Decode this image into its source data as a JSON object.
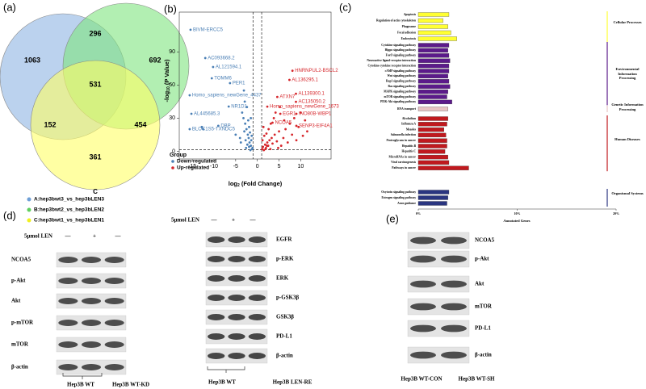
{
  "venn": {
    "label": "(a)",
    "set_label": "C",
    "counts": [
      1063,
      296,
      692,
      531,
      152,
      454,
      361
    ],
    "legend": [
      "A:hep3bwt3_vs_hep3bLEN3",
      "B:hep3bwt2_vs_hep3bLEN2",
      "C:hep3bwt1_vs_hep3bLEN1"
    ],
    "colors": [
      "#8db4e2",
      "#7fe47f",
      "#ffff66"
    ],
    "legend_colors": [
      "#6e9fd6",
      "#5fcf5f",
      "#f0f020"
    ]
  },
  "volcano": {
    "label": "(b)",
    "type": "scatter",
    "xlabel": {
      "pre": "log",
      "sub": "2",
      "post": " (Fold Change)"
    },
    "ylabel": {
      "pre": "-log",
      "sub": "10",
      "post": " (P Value)"
    },
    "xlim": [
      -18,
      17
    ],
    "ylim": [
      -7,
      126
    ],
    "xticks": [
      -15,
      -10,
      -5,
      0,
      5,
      10
    ],
    "yticks": [
      0,
      30,
      60,
      90
    ],
    "thresholds": {
      "x": [
        -1,
        1
      ],
      "y": 1.3
    },
    "legend_title": "Group",
    "series": [
      {
        "name": "Down-regulated",
        "color": "#4a7fb5",
        "x": [
          -1.2,
          -1.5,
          -1.8,
          -2.0,
          -2.2,
          -1.4,
          -2.5,
          -2.8,
          -3.0,
          -1.1,
          -1.6,
          -2.3,
          -3.2,
          -2.7,
          -1.9,
          -3.5,
          -2.1,
          -1.3,
          -4.0,
          -1.7,
          -2.4,
          -2.9,
          -3.1,
          -1.5,
          -12.8,
          -12.5,
          -5,
          -2.6,
          -1.9,
          -3.8
        ],
        "y": [
          2,
          5,
          8,
          12,
          15,
          10,
          20,
          25,
          18,
          3,
          1,
          6,
          30,
          10,
          22,
          35,
          28,
          14,
          12,
          17,
          40,
          45,
          55,
          30,
          22,
          20,
          15,
          3,
          4,
          8
        ]
      },
      {
        "name": "Up-regulated",
        "color": "#d6262b",
        "x": [
          1.1,
          1.3,
          1.5,
          1.8,
          2.0,
          2.3,
          2.5,
          2.8,
          3.0,
          3.3,
          3.5,
          4.0,
          4.5,
          5.0,
          5.5,
          6.0,
          6.5,
          7.0,
          7.5,
          8.0,
          8.5,
          9.0,
          9.5,
          10.0,
          10.5,
          11,
          11.5,
          1.2,
          1.6,
          2.1,
          2.6,
          3.1,
          3.8,
          4.2,
          5.2,
          6.2,
          1.4,
          2.2,
          1.9,
          4.8
        ],
        "y": [
          2,
          4,
          1,
          6,
          3,
          8,
          5,
          10,
          2,
          12,
          7,
          15,
          9,
          18,
          5,
          12,
          20,
          8,
          25,
          15,
          30,
          10,
          22,
          35,
          14,
          28,
          18,
          10,
          14,
          16,
          20,
          25,
          30,
          35,
          40,
          28,
          22,
          5,
          2,
          3
        ]
      }
    ],
    "annotations": [
      {
        "text": "BIVM-ERCC5",
        "x": -15.4,
        "y": 110,
        "series": 0
      },
      {
        "text": "AC093668.2",
        "x": -12.0,
        "y": 84.4,
        "series": 0
      },
      {
        "text": "AL121594.1",
        "x": -10.2,
        "y": 76.3,
        "series": 0
      },
      {
        "text": "TOMM6",
        "x": -10.5,
        "y": 66.1,
        "series": 0
      },
      {
        "text": "PER1",
        "x": -6.3,
        "y": 61.7,
        "series": 0
      },
      {
        "text": "Homo_sapiens_newGene_4437",
        "x": -15.6,
        "y": 50.7,
        "series": 0
      },
      {
        "text": "NR1D1",
        "x": -6.6,
        "y": 40.5,
        "series": 0
      },
      {
        "text": "AL445685.3",
        "x": -15.2,
        "y": 33.9,
        "series": 0
      },
      {
        "text": "DBP",
        "x": -9.0,
        "y": 23.0,
        "series": 0
      },
      {
        "text": "BLOC1S5-TXNDC5",
        "x": -15.6,
        "y": 20.0,
        "series": 0
      },
      {
        "text": "HNRNPUL2-BSCL2",
        "x": 8.1,
        "y": 72.9,
        "series": 1
      },
      {
        "text": "AL136295.1",
        "x": 7.4,
        "y": 64.6,
        "series": 1
      },
      {
        "text": "AL139300.1",
        "x": 8.9,
        "y": 52.1,
        "series": 1
      },
      {
        "text": "AC135050.2",
        "x": 8.9,
        "y": 44.8,
        "series": 1
      },
      {
        "text": "ATXN7",
        "x": 4.6,
        "y": 49.2,
        "series": 1
      },
      {
        "text": "Homo_sapiens_newGene_1673",
        "x": 2.3,
        "y": 40.4,
        "series": 1
      },
      {
        "text": "EGR1",
        "x": 5.3,
        "y": 33.9,
        "series": 1
      },
      {
        "text": "INO80B-WBP1",
        "x": 9.0,
        "y": 33.9,
        "series": 1
      },
      {
        "text": "NCOA5",
        "x": 3.5,
        "y": 25.9,
        "series": 1
      },
      {
        "text": "SENP3-EIF4A1",
        "x": 9.0,
        "y": 23.0,
        "series": 1
      }
    ]
  },
  "kegg": {
    "label": "(c)",
    "type": "bar",
    "xlabel": "Annotated Genes",
    "xlim": [
      0,
      20
    ],
    "xticks": [
      {
        "value": 0,
        "label": "0%"
      },
      {
        "value": 10,
        "label": "10%"
      },
      {
        "value": 20,
        "label": "20%"
      }
    ],
    "groups": [
      {
        "name": "Cellular Processes",
        "color": "#ffff33",
        "categories": [
          "Apoptosis",
          "Regulation of actin cytoskeleton",
          "Phagosome",
          "Focal adhesion",
          "Endocytosis"
        ],
        "values": [
          3.1,
          2.5,
          3.0,
          3.3,
          3.9
        ]
      },
      {
        "name": "Environmental Information Processing",
        "color": "#5b1a8a",
        "categories": [
          "Cytokine signaling pathway",
          "Hippo signaling pathway",
          "FoxO signaling pathway",
          "Neuroactive ligand-receptor interaction",
          "Cytokine-cytokine receptor interaction",
          "cAMP signaling pathway",
          "Wnt signaling pathway",
          "Rap1 signaling pathway",
          "Ras signaling pathway",
          "MAPK signaling pathway",
          "mTOR signaling pathway",
          "PI3K-Akt signaling pathway"
        ],
        "values": [
          3.1,
          3.0,
          3.1,
          3.2,
          3.1,
          3.1,
          3.0,
          3.1,
          3.2,
          3.0,
          2.9,
          3.4
        ]
      },
      {
        "name": "Genetic Information Processing",
        "color": "#e8c4c4",
        "categories": [
          "RNA transport"
        ],
        "values": [
          3.0
        ]
      },
      {
        "name": "Human Diseases",
        "color": "#c0191e",
        "categories": [
          "Alcoholism",
          "Influenza A",
          "Measles",
          "Salmonella infection",
          "Proteoglycans in cancer",
          "Hepatitis B",
          "Hepatitis C",
          "MicroRNAs in cancer",
          "Viral carcinogenesis",
          "Pathways in cancer"
        ],
        "values": [
          3.0,
          2.9,
          2.6,
          2.8,
          2.9,
          2.9,
          2.7,
          3.0,
          3.1,
          5.1
        ]
      },
      {
        "name": "Organismal Systems",
        "color": "#2a3580",
        "categories": [
          "Oxytocin signaling pathway",
          "Estrogen signaling pathway",
          "Axon guidance"
        ],
        "values": [
          3.1,
          3.0,
          2.9
        ]
      }
    ]
  },
  "blot_d1": {
    "label": "(d)",
    "treatment": "5μmol LEN",
    "marks": [
      "—",
      "+",
      "—"
    ],
    "proteins": [
      "NCOA5",
      "p-Akt",
      "Akt",
      "p-mTOR",
      "mTOR",
      "β-actin"
    ],
    "groups": [
      "Hep3B WT",
      "Hep3B WT-KD"
    ]
  },
  "blot_d2": {
    "treatment": "5μmol LEN",
    "marks": [
      "—",
      "+",
      "—"
    ],
    "proteins": [
      "EGFR",
      "p-ERK",
      "ERK",
      "p-GSK3β",
      "GSK3β",
      "PD-L1",
      "β-actin"
    ],
    "groups": [
      "Hep3B WT",
      "Hep3B LEN-RE"
    ]
  },
  "blot_e": {
    "label": "(e)",
    "proteins": [
      "NCOA5",
      "p-Akt",
      "Akt",
      "mTOR",
      "PD-L1",
      "β-actin"
    ],
    "groups": [
      "Hep3B WT-CON",
      "Hep3B WT-SH"
    ]
  }
}
